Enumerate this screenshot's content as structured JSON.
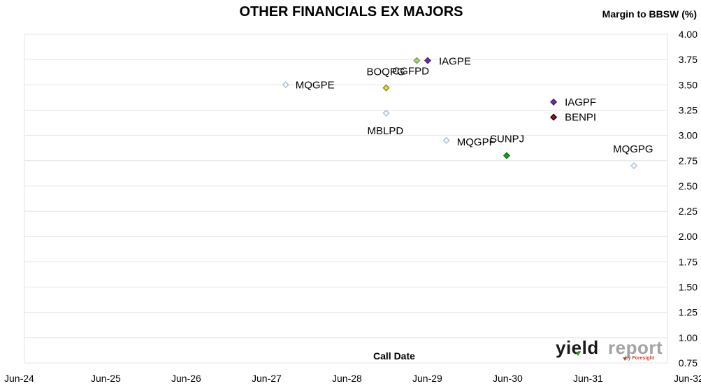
{
  "chart_data": {
    "type": "scatter",
    "title": "OTHER FINANCIALS EX MAJORS",
    "ylabel": "Margin to BBSW (%)",
    "xlabel": "Call Date",
    "x_tick_labels": [
      "Jun-24",
      "Jun-25",
      "Jun-26",
      "Jun-27",
      "Jun-28",
      "Jun-29",
      "Jun-30",
      "Jun-31",
      "Jun-32"
    ],
    "xlim": [
      "2024-06",
      "2032-06"
    ],
    "y_tick_labels": [
      "0.75",
      "1.00",
      "1.25",
      "1.50",
      "1.75",
      "2.00",
      "2.25",
      "2.50",
      "2.75",
      "3.00",
      "3.25",
      "3.50",
      "3.75",
      "4.00"
    ],
    "ylim": [
      0.75,
      4.0
    ],
    "y_axis_side": "right",
    "grid": "horizontal",
    "points": [
      {
        "label": "MQGPE",
        "x": "2027-09",
        "y": 3.5,
        "color": "#ffffff",
        "stroke": "#a9c0e0"
      },
      {
        "label": "BOQPG",
        "x": "2028-12",
        "y": 3.47,
        "color": "#e4e43a",
        "stroke": "#8c8c1a"
      },
      {
        "label": "CGFPD",
        "x": "2029-05",
        "y": 3.74,
        "color": "#a6cf8e",
        "stroke": "#7a9f68"
      },
      {
        "label": "IAGPE",
        "x": "2029-06",
        "y": 3.74,
        "color": "#7030a0",
        "stroke": "#4d1f70"
      },
      {
        "label": "MBLPD",
        "x": "2028-12",
        "y": 3.22,
        "color": "#ffffff",
        "stroke": "#a9c0e0"
      },
      {
        "label": "MQGPF",
        "x": "2029-09",
        "y": 2.95,
        "color": "#ffffff",
        "stroke": "#a9c0e0"
      },
      {
        "label": "SUNPJ",
        "x": "2030-06",
        "y": 2.8,
        "color": "#1aa31a",
        "stroke": "#0f700f"
      },
      {
        "label": "IAGPF",
        "x": "2031-01",
        "y": 3.33,
        "color": "#7030a0",
        "stroke": "#4d1f70"
      },
      {
        "label": "BENPI",
        "x": "2031-01",
        "y": 3.18,
        "color": "#a01a1a",
        "stroke": "#200000"
      },
      {
        "label": "MQGPG",
        "x": "2032-01",
        "y": 2.7,
        "color": "#ffffff",
        "stroke": "#a9c0e0"
      }
    ]
  },
  "logo": {
    "word1": "yield",
    "word2": "report",
    "by": "by ",
    "brand": "Foresight"
  }
}
